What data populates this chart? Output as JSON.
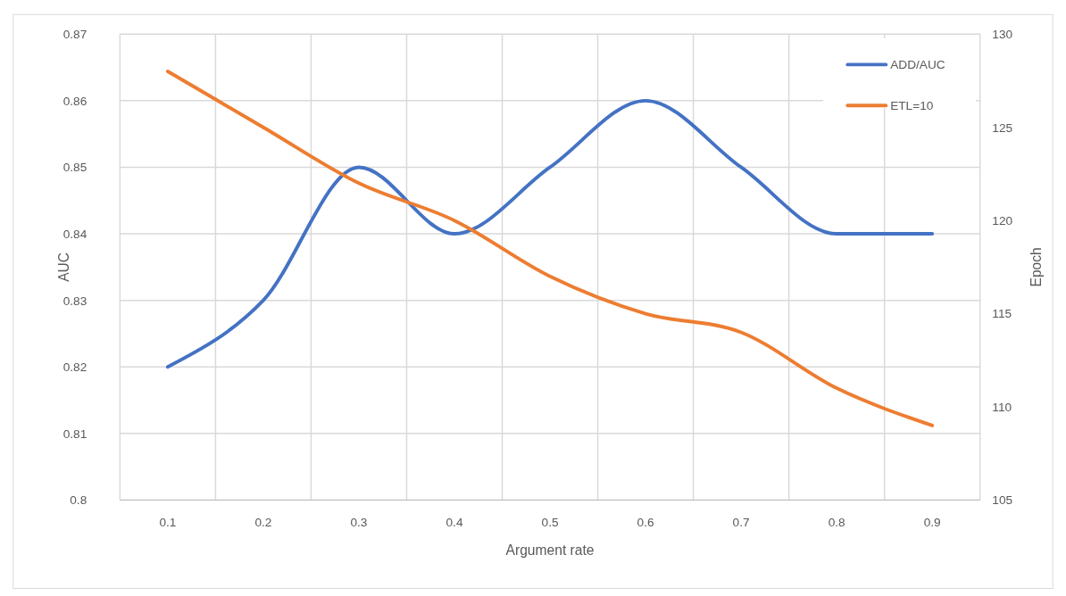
{
  "chart_data": {
    "type": "line",
    "xlabel": "Argument rate",
    "ylabel": "AUC",
    "y2label": "Epoch",
    "categories": [
      "0.1",
      "0.2",
      "0.3",
      "0.4",
      "0.5",
      "0.6",
      "0.7",
      "0.8",
      "0.9"
    ],
    "series": [
      {
        "name": "ADD/AUC",
        "color": "#4472c4",
        "values": [
          0.82,
          0.83,
          0.85,
          0.84,
          0.85,
          0.86,
          0.85,
          0.84,
          0.84
        ]
      },
      {
        "name": "ETL=10",
        "color": "#ed7d31",
        "axis": "y2",
        "values": [
          128,
          125,
          122,
          120,
          117,
          115,
          114,
          111,
          109
        ]
      }
    ],
    "ylim": [
      0.8,
      0.87
    ],
    "yticks": [
      0.8,
      0.81,
      0.82,
      0.83,
      0.84,
      0.85,
      0.86,
      0.87
    ],
    "y2lim": [
      105,
      130
    ],
    "y2ticks": [
      105,
      110,
      115,
      120,
      125,
      130
    ],
    "grid": true,
    "legend": "top right",
    "marker": "none",
    "line_style": "solid"
  }
}
